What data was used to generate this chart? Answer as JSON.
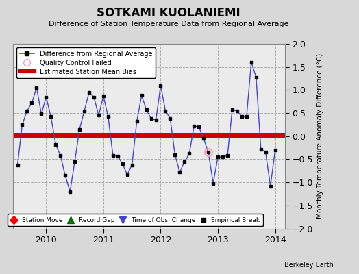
{
  "title": "SOTKAMI KUOLANIEMI",
  "subtitle": "Difference of Station Temperature Data from Regional Average",
  "ylabel": "Monthly Temperature Anomaly Difference (°C)",
  "xlabel_right": "Berkeley Earth",
  "bias_value": 0.03,
  "ylim": [
    -2,
    2
  ],
  "yticks": [
    -2,
    -1.5,
    -1,
    -0.5,
    0,
    0.5,
    1,
    1.5,
    2
  ],
  "background_color": "#d8d8d8",
  "plot_bg_color": "#ebebeb",
  "line_color": "#4444cc",
  "bias_color": "#cc0000",
  "marker_color": "#000000",
  "qc_fail_color": "#ff99bb",
  "time_data": [
    2009.5,
    2009.583,
    2009.667,
    2009.75,
    2009.833,
    2009.917,
    2010.0,
    2010.083,
    2010.167,
    2010.25,
    2010.333,
    2010.417,
    2010.5,
    2010.583,
    2010.667,
    2010.75,
    2010.833,
    2010.917,
    2011.0,
    2011.083,
    2011.167,
    2011.25,
    2011.333,
    2011.417,
    2011.5,
    2011.583,
    2011.667,
    2011.75,
    2011.833,
    2011.917,
    2012.0,
    2012.083,
    2012.167,
    2012.25,
    2012.333,
    2012.417,
    2012.5,
    2012.583,
    2012.667,
    2012.75,
    2012.833,
    2012.917,
    2013.0,
    2013.083,
    2013.167,
    2013.25,
    2013.333,
    2013.417,
    2013.5,
    2013.583,
    2013.667,
    2013.75,
    2013.833,
    2013.917,
    2014.0
  ],
  "values": [
    -0.62,
    0.25,
    0.55,
    0.72,
    1.05,
    0.48,
    0.85,
    0.42,
    -0.18,
    -0.42,
    -0.85,
    -1.2,
    -0.55,
    0.15,
    0.55,
    0.95,
    0.85,
    0.45,
    0.87,
    0.42,
    -0.42,
    -0.43,
    -0.6,
    -0.83,
    -0.62,
    0.32,
    0.88,
    0.57,
    0.38,
    0.35,
    1.1,
    0.55,
    0.38,
    -0.4,
    -0.78,
    -0.55,
    -0.38,
    0.22,
    0.2,
    -0.05,
    -0.35,
    -1.02,
    -0.45,
    -0.45,
    -0.42,
    0.57,
    0.55,
    0.42,
    0.42,
    1.6,
    1.28,
    -0.28,
    -0.35,
    -1.08,
    -0.3
  ],
  "qc_fail_index": 40,
  "xlim": [
    2009.42,
    2014.17
  ],
  "xtick_positions": [
    2010,
    2011,
    2012,
    2013,
    2014
  ],
  "xtick_labels": [
    "2010",
    "2011",
    "2012",
    "2013",
    "2014"
  ]
}
